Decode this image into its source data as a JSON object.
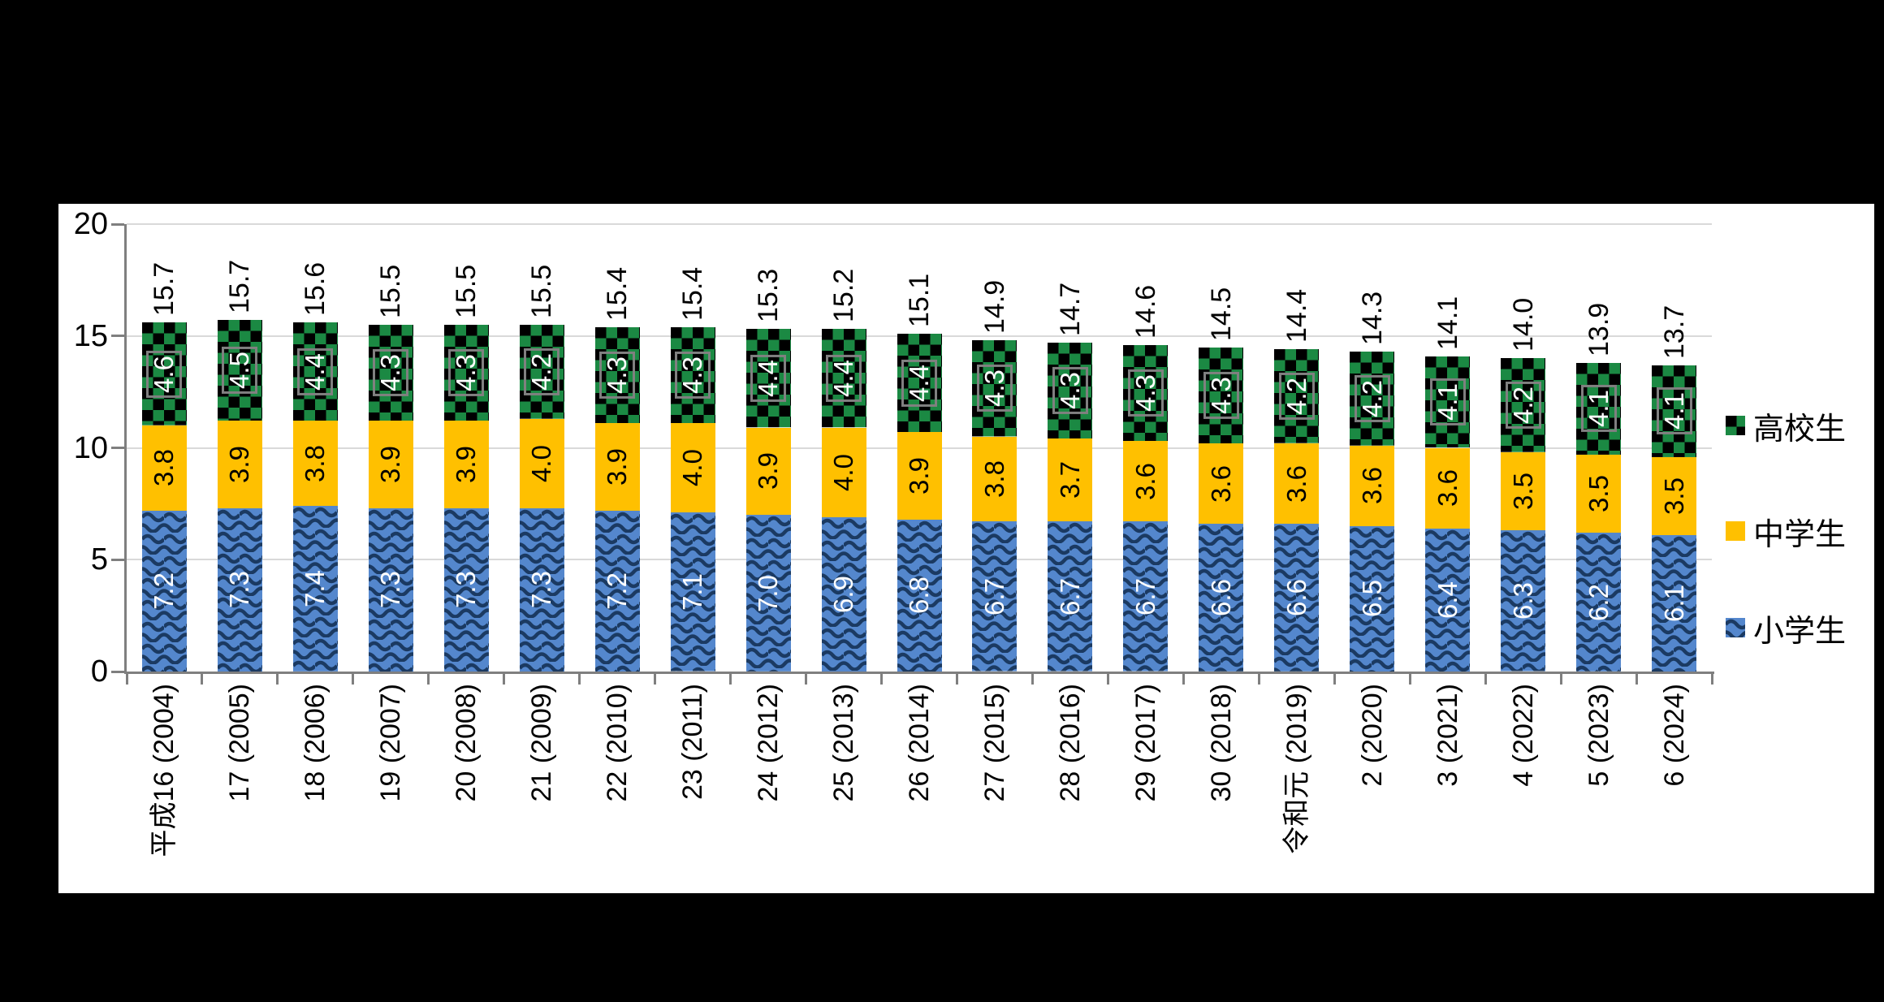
{
  "chart_data": {
    "type": "bar",
    "stacked": true,
    "categories": [
      "平成16 (2004)",
      "17 (2005)",
      "18 (2006)",
      "19 (2007)",
      "20 (2008)",
      "21 (2009)",
      "22 (2010)",
      "23 (2011)",
      "24 (2012)",
      "25 (2013)",
      "26 (2014)",
      "27 (2015)",
      "28 (2016)",
      "29 (2017)",
      "30 (2018)",
      "令和元 (2019)",
      "2 (2020)",
      "3 (2021)",
      "4 (2022)",
      "5 (2023)",
      "6 (2024)"
    ],
    "series": [
      {
        "name": "小学生",
        "key": "elementary",
        "pattern": "wave",
        "values": [
          7.2,
          7.3,
          7.4,
          7.3,
          7.3,
          7.3,
          7.2,
          7.1,
          7.0,
          6.9,
          6.8,
          6.7,
          6.7,
          6.7,
          6.6,
          6.6,
          6.5,
          6.4,
          6.3,
          6.2,
          6.1
        ],
        "label_color": "#FFFFFF",
        "label_boxed": false
      },
      {
        "name": "中学生",
        "key": "juniorhigh",
        "pattern": "solid",
        "values": [
          3.8,
          3.9,
          3.8,
          3.9,
          3.9,
          4.0,
          3.9,
          4.0,
          3.9,
          4.0,
          3.9,
          3.8,
          3.7,
          3.6,
          3.6,
          3.6,
          3.6,
          3.6,
          3.5,
          3.5,
          3.5
        ],
        "label_color": "#000000",
        "label_boxed": false
      },
      {
        "name": "高校生",
        "key": "highschool",
        "pattern": "checker",
        "values": [
          4.6,
          4.5,
          4.4,
          4.3,
          4.3,
          4.2,
          4.3,
          4.3,
          4.4,
          4.4,
          4.4,
          4.3,
          4.3,
          4.3,
          4.3,
          4.2,
          4.2,
          4.1,
          4.2,
          4.1,
          4.1
        ],
        "label_color": "#FFFFFF",
        "label_boxed": true
      }
    ],
    "totals": [
      15.7,
      15.7,
      15.6,
      15.5,
      15.5,
      15.5,
      15.4,
      15.4,
      15.3,
      15.2,
      15.1,
      14.9,
      14.7,
      14.6,
      14.5,
      14.4,
      14.3,
      14.1,
      14.0,
      13.9,
      13.7
    ],
    "y_ticks": [
      0,
      5,
      10,
      15,
      20
    ],
    "ylim": [
      0,
      20
    ],
    "grid": true,
    "legend_position": "right",
    "legend_order": [
      "高校生",
      "中学生",
      "小学生"
    ]
  },
  "colors": {
    "background": "#000000",
    "panel": "#FFFFFF",
    "axis": "#7F7F7F",
    "gridline": "#D9D9D9",
    "elementary_blue": "#5487CD",
    "elementary_wave": "#1B3A62",
    "juniorhigh_gold": "#FFC000",
    "highschool_green": "#1B8943",
    "checker_black": "#000000",
    "label_box_border": "#808080",
    "text": "#000000"
  }
}
